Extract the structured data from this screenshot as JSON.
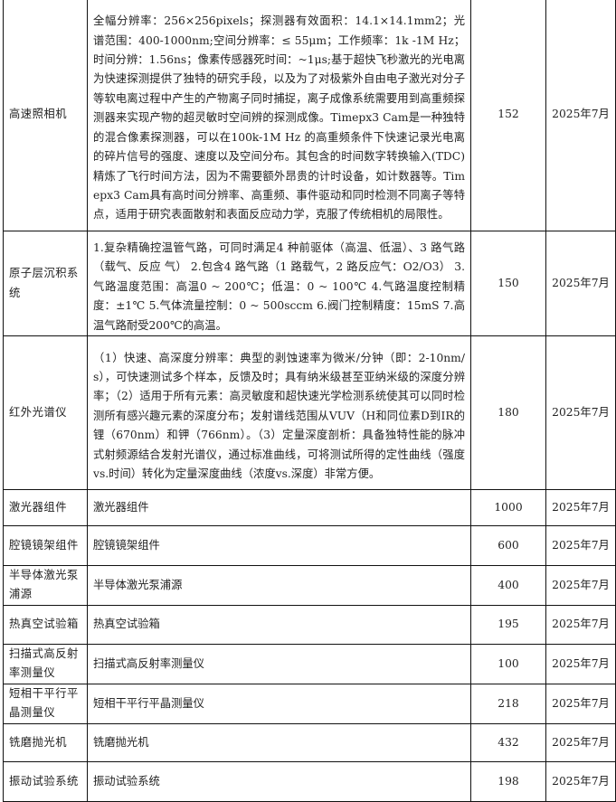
{
  "rows": [
    {
      "name": "高速照相机",
      "desc": "全幅分辨率：256×256pixels；探测器有效面积：14.1×14.1mm2；光谱范围：400-1000nm;空间分辨率：≤ 55μm；工作频率：1k -1M Hz；时间分辨：1.56ns；像素传感器死时间：~1μs;基于超快飞秒激光的光电离为快速探测提供了独特的研究手段，以及为了对极紫外自由电子激光对分子等软电离过程中产生的产物离子同时捕捉，离子成像系统需要用到高重频探测器来实现产物的超灵敏时空间辨的探测成像。Timepx3 Cam是一种独特的混合像素探测器，可以在100k-1M Hz 的高重频条件下快速记录光电离的碎片信号的强度、速度以及空间分布。其包含的时间数字转换输入(TDC)精炼了飞行时间方法，因为不需要额外昂贵的计时设备，如计数器等。Timepx3 Cam具有高时间分辨率、高重频、事件驱动和同时检测不同离子等特点，适用于研究表面散射和表面反应动力学，克服了传统相机的局限性。",
      "qty": "152",
      "date": "2025年7月"
    },
    {
      "name": "原子层沉积系统",
      "desc": "1.复杂精确控温管气路，可同时满足4 种前驱体（高温、低温）、3 路气路（载气、反应 气） 2.包含4 路气路（1 路载气，2 路反应气：O2/O3） 3.气路温度范围：高温0 ~ 200℃；低温：0 ~ 100℃ 4.气路温度控制精度：±1℃ 5.气体流量控制：0 ~ 500sccm 6.阀门控制精度：15mS 7.高温气路耐受200℃的高温。",
      "qty": "150",
      "date": "2025年7月"
    },
    {
      "name": "红外光谱仪",
      "desc": "（1）快速、高深度分辨率：典型的剥蚀速率为微米/分钟（即：2-10nm/s），可快速测试多个样本，反馈及时；具有纳米级甚至亚纳米级的深度分辨率；（2）适用于所有元素：高灵敏度和超快速光学检测系统使其可以同时检测所有感兴趣元素的深度分布；发射谱线范围从VUV（H和同位素D到IR的锂（670nm）和钾（766nm）。（3）定量深度剖析：具备独特性能的脉冲式射频源结合发射光谱仪，通过标准曲线，可将测试所得的定性曲线（强度vs.时间）转化为定量深度曲线（浓度vs.深度）非常方便。",
      "qty": "180",
      "date": "2025年7月"
    },
    {
      "name": "激光器组件",
      "desc": "激光器组件",
      "qty": "1000",
      "date": "2025年7月"
    },
    {
      "name": "腔镜镜架组件",
      "desc": "腔镜镜架组件",
      "qty": "600",
      "date": "2025年7月"
    },
    {
      "name": "半导体激光泵浦源",
      "desc": "半导体激光泵浦源",
      "qty": "400",
      "date": "2025年7月"
    },
    {
      "name": "热真空试验箱",
      "desc": "热真空试验箱",
      "qty": "195",
      "date": "2025年7月"
    },
    {
      "name": "扫描式高反射率测量仪",
      "desc": "扫描式高反射率测量仪",
      "qty": "100",
      "date": "2025年7月"
    },
    {
      "name": "短相干平行平晶测量仪",
      "desc": "短相干平行平晶测量仪",
      "qty": "218",
      "date": "2025年7月"
    },
    {
      "name": "铣磨抛光机",
      "desc": "铣磨抛光机",
      "qty": "432",
      "date": "2025年7月"
    },
    {
      "name": "振动试验系统",
      "desc": "振动试验系统",
      "qty": "198",
      "date": "2025年7月"
    }
  ]
}
